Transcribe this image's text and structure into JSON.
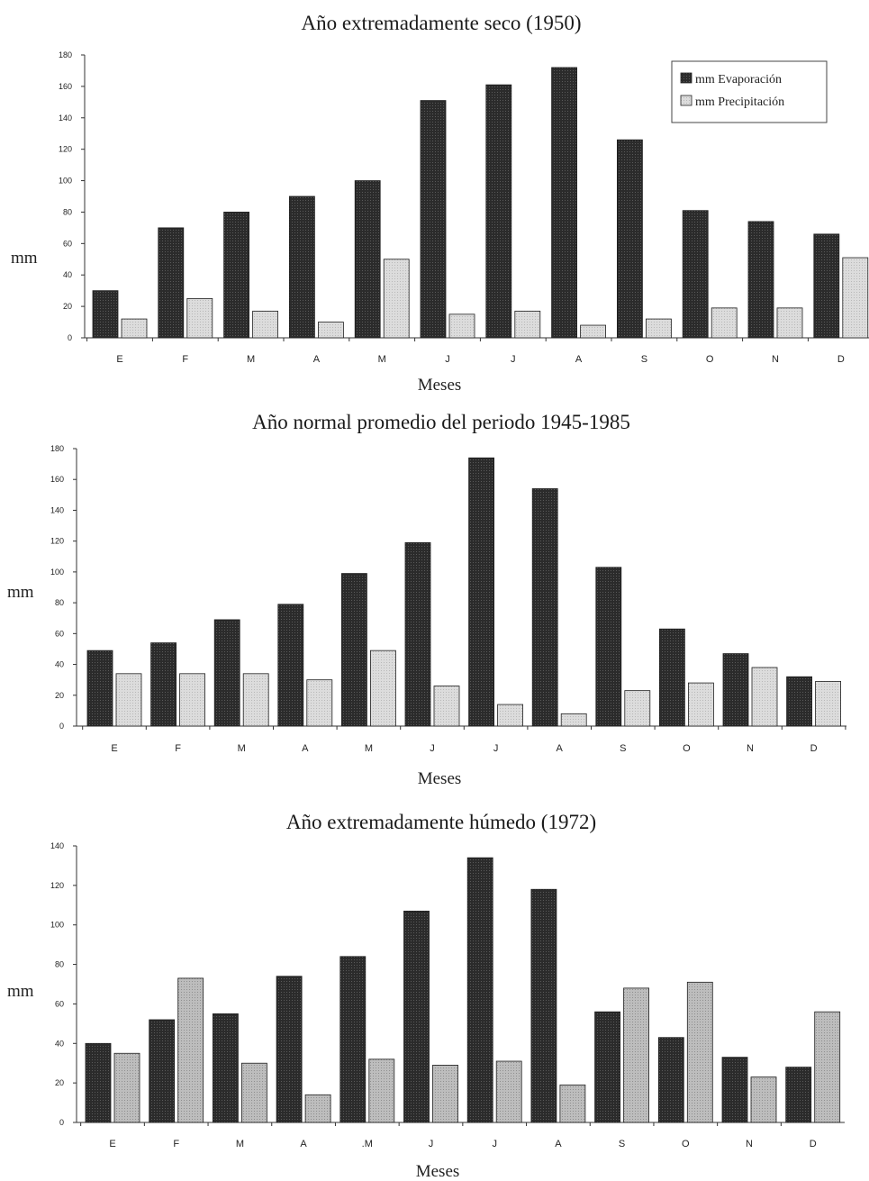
{
  "chart_data": [
    {
      "type": "bar",
      "title": "Año extremadamente seco (1950)",
      "xlabel": "Meses",
      "ylabel": "mm",
      "ylim": [
        0,
        180
      ],
      "ytick_step": 20,
      "categories": [
        "E",
        "F",
        "M",
        "A",
        "M",
        "J",
        "J",
        "A",
        "S",
        "O",
        "N",
        "D"
      ],
      "series": [
        {
          "name": "mm Evaporación",
          "color": "#2b2b2b",
          "values": [
            30,
            70,
            80,
            90,
            100,
            151,
            161,
            172,
            126,
            81,
            74,
            66
          ]
        },
        {
          "name": "mm Precipitación",
          "color": "#d9d9d9",
          "values": [
            12,
            25,
            17,
            10,
            50,
            15,
            17,
            8,
            12,
            19,
            19,
            51
          ]
        }
      ],
      "legend": "top-right",
      "grid": false
    },
    {
      "type": "bar",
      "title": "Año normal promedio del periodo 1945-1985",
      "xlabel": "Meses",
      "ylabel": "mm",
      "ylim": [
        0,
        180
      ],
      "ytick_step": 20,
      "categories": [
        "E",
        "F",
        "M",
        "A",
        "M",
        "J",
        "J",
        "A",
        "S",
        "O",
        "N",
        "D"
      ],
      "series": [
        {
          "color": "#2b2b2b",
          "values": [
            49,
            54,
            69,
            79,
            99,
            119,
            174,
            154,
            103,
            63,
            47,
            32
          ]
        },
        {
          "color": "#d9d9d9",
          "values": [
            34,
            34,
            34,
            30,
            49,
            26,
            14,
            8,
            23,
            28,
            38,
            29
          ]
        }
      ],
      "grid": false
    },
    {
      "type": "bar",
      "title": "Año extremadamente húmedo (1972)",
      "xlabel": "Meses",
      "ylabel": "mm",
      "ylim": [
        0,
        140
      ],
      "ytick_step": 20,
      "categories": [
        "E",
        "F",
        "M",
        "A",
        ".M",
        "J",
        "J",
        "A",
        "S",
        "O",
        "N",
        "D"
      ],
      "series": [
        {
          "color": "#2b2b2b",
          "values": [
            40,
            52,
            55,
            74,
            84,
            107,
            134,
            118,
            56,
            43,
            33,
            28
          ]
        },
        {
          "color": "#bdbdbd",
          "values": [
            35,
            73,
            30,
            14,
            32,
            29,
            31,
            19,
            68,
            71,
            23,
            56
          ]
        }
      ],
      "grid": false
    }
  ]
}
